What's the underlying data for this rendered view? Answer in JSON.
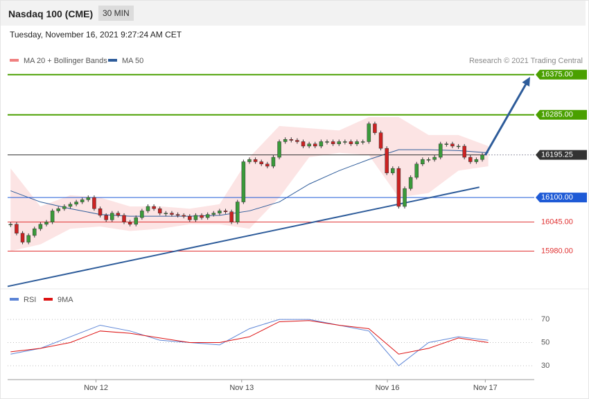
{
  "header": {
    "title": "Nasdaq 100 (CME)",
    "interval": "30 MIN",
    "timestamp": "Tuesday, November 16, 2021 9:27:24 AM CET"
  },
  "chart_data": [
    {
      "type": "candlestick",
      "legend": [
        {
          "name": "MA 20 + Bollinger Bands",
          "color": "#f08080"
        },
        {
          "name": "MA 50",
          "color": "#2e5c9a"
        }
      ],
      "credit": "Research © 2021 Trading Central",
      "xlim": [
        -0.5,
        87.7
      ],
      "xticks": [
        {
          "value": 14.3,
          "label": "Nov 12"
        },
        {
          "value": 38.7,
          "label": "Nov 13"
        },
        {
          "value": 63.1,
          "label": "Nov 16"
        },
        {
          "value": 79.5,
          "label": "Nov 17"
        }
      ],
      "ylim": [
        15897,
        16432
      ],
      "closes": [
        16040,
        16020,
        16000,
        16015,
        16030,
        16040,
        16045,
        16070,
        16075,
        16080,
        16085,
        16090,
        16095,
        16100,
        16075,
        16060,
        16050,
        16065,
        16060,
        16045,
        16040,
        16055,
        16070,
        16080,
        16075,
        16065,
        16065,
        16062,
        16060,
        16058,
        16050,
        16060,
        16055,
        16062,
        16065,
        16070,
        16068,
        16045,
        16090,
        16180,
        16185,
        16180,
        16175,
        16170,
        16190,
        16225,
        16230,
        16228,
        16225,
        16215,
        16220,
        16215,
        16225,
        16225,
        16220,
        16225,
        16225,
        16220,
        16225,
        16225,
        16265,
        16245,
        16210,
        16155,
        16165,
        16080,
        16120,
        16145,
        16175,
        16185,
        16185,
        16190,
        16220,
        16220,
        16215,
        16215,
        16190,
        16180,
        16185,
        16195.25
      ],
      "up_color": "#3a9a3a",
      "down_color": "#cc2222",
      "sample_x": [
        0,
        5,
        10,
        15,
        20,
        25,
        30,
        35,
        40,
        45,
        50,
        55,
        60,
        65,
        70,
        75,
        80
      ],
      "bb_upper": [
        16165,
        16080,
        16105,
        16100,
        16080,
        16080,
        16075,
        16085,
        16190,
        16260,
        16255,
        16250,
        16280,
        16280,
        16240,
        16240,
        16215
      ],
      "bb_lower": [
        15980,
        15995,
        16030,
        16035,
        16025,
        16030,
        16040,
        16040,
        16030,
        16100,
        16190,
        16200,
        16195,
        16100,
        16110,
        16160,
        16170
      ],
      "ma50": [
        16115,
        16090,
        16075,
        16062,
        16058,
        16058,
        16058,
        16060,
        16070,
        16090,
        16130,
        16160,
        16185,
        16207,
        16207,
        16205,
        16200
      ],
      "levels": [
        {
          "value": 16375,
          "label": "16375.00",
          "color": "#4aa000"
        },
        {
          "value": 16285,
          "label": "16285.00",
          "color": "#4aa000"
        },
        {
          "value": 16195.25,
          "label": "16195.25",
          "color": "#333333"
        },
        {
          "value": 16100,
          "label": "16100.00",
          "color": "#1e5ad6"
        },
        {
          "value": 16045,
          "label": "16045.00",
          "color": "#e03030"
        },
        {
          "value": 15980,
          "label": "15980.00",
          "color": "#e03030"
        }
      ],
      "trendline": {
        "x": [
          -0.5,
          78.5
        ],
        "y": [
          15901,
          16123
        ],
        "color": "#2e5c9a"
      },
      "arrow": {
        "x": [
          79.5,
          87
        ],
        "y": [
          16195,
          16370
        ],
        "color": "#2e5c9a"
      }
    },
    {
      "type": "line",
      "series": [
        {
          "name": "RSI",
          "color": "#5b84d6",
          "values": [
            40,
            45,
            55,
            65,
            60,
            52,
            50,
            48,
            62,
            70,
            70,
            65,
            60,
            30,
            50,
            55,
            52
          ]
        },
        {
          "name": "9MA",
          "color": "#dd1111",
          "values": [
            42,
            45,
            50,
            60,
            58,
            54,
            50,
            50,
            55,
            68,
            69,
            65,
            62,
            40,
            45,
            54,
            50
          ]
        }
      ],
      "ylim": [
        18,
        94
      ],
      "yticks": [
        70,
        50,
        30
      ]
    }
  ]
}
